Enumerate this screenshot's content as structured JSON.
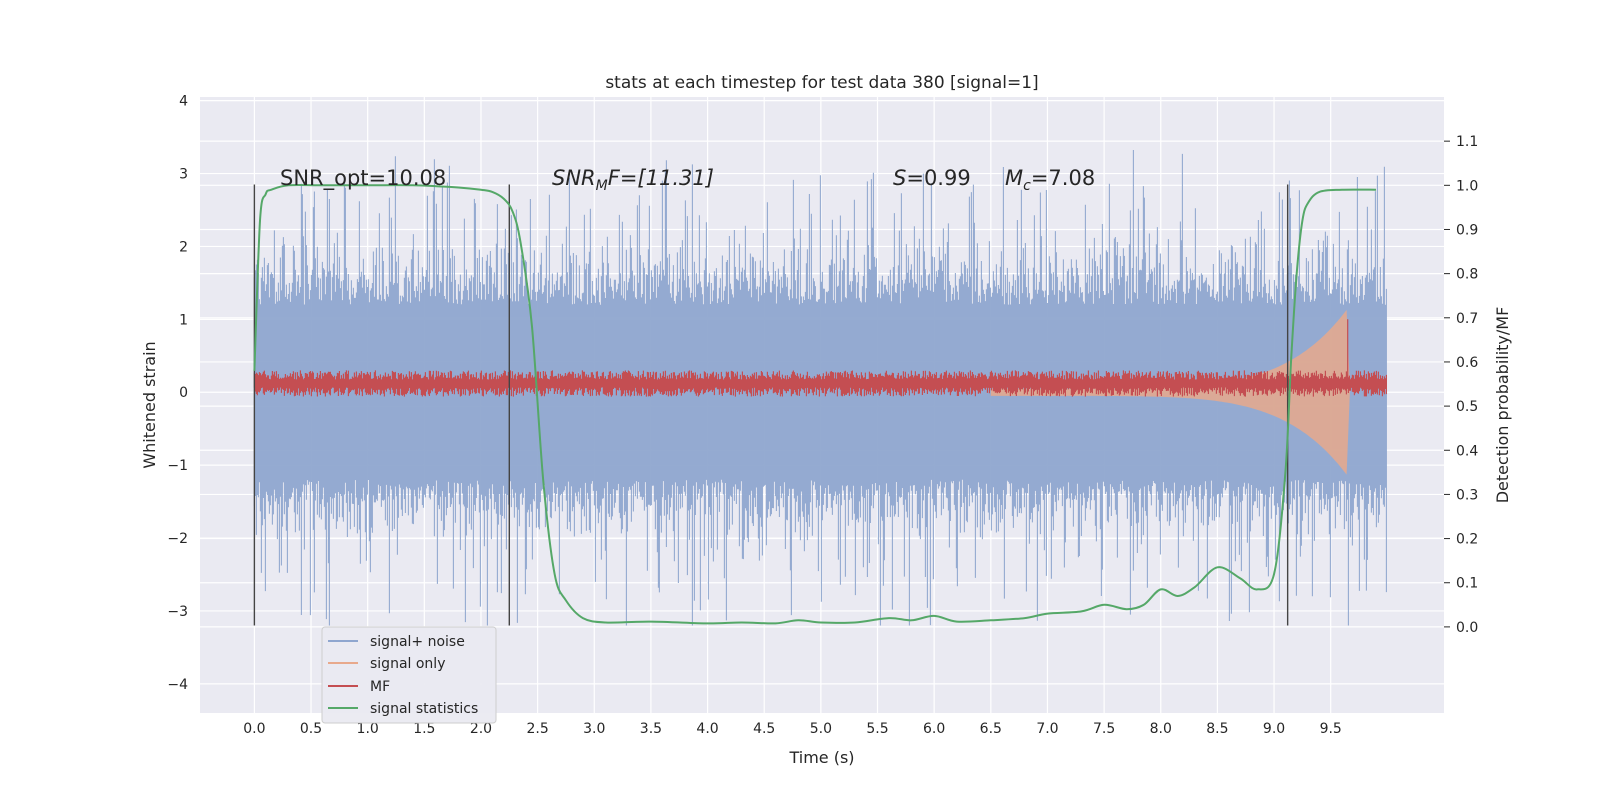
{
  "chart_data": {
    "type": "line",
    "title": "stats at each timestep for test data 380 [signal=1]",
    "xlabel": "Time (s)",
    "ylabel_left": "Whitened strain",
    "ylabel_right": "Detection probability/MF",
    "xlim": [
      -0.48,
      10.5
    ],
    "ylim_left": [
      -4.4,
      4.05
    ],
    "ylim_right": [
      -0.195,
      1.2
    ],
    "xticks": [
      "0.0",
      "0.5",
      "1.0",
      "1.5",
      "2.0",
      "2.5",
      "3.0",
      "3.5",
      "4.0",
      "4.5",
      "5.0",
      "5.5",
      "6.0",
      "6.5",
      "7.0",
      "7.5",
      "8.0",
      "8.5",
      "9.0",
      "9.5"
    ],
    "yticks_left": [
      "−4",
      "−3",
      "−2",
      "−1",
      "0",
      "1",
      "2",
      "3",
      "4"
    ],
    "yticks_right": [
      "0.0",
      "0.1",
      "0.2",
      "0.3",
      "0.4",
      "0.5",
      "0.6",
      "0.7",
      "0.8",
      "0.9",
      "1.0",
      "1.1"
    ],
    "grid": true,
    "legend_position": "lower-left",
    "annotations": {
      "snr_opt": "SNR_opt=10.08",
      "snr_mf_prefix": "SNR",
      "snr_mf_sub": "M",
      "snr_mf_suffix": "F=[11.31]",
      "s_var": "S",
      "s_val": "=0.99",
      "mc_var": "M",
      "mc_sub": "c",
      "mc_val": "=7.08"
    },
    "vlines": [
      0.0,
      2.25,
      9.12
    ],
    "series": [
      {
        "name": "signal+ noise",
        "color": "#8fa6cf",
        "axis": "left",
        "x_range": [
          0.0,
          10.0
        ],
        "envelope": [
          -3.2,
          3.6
        ]
      },
      {
        "name": "signal only",
        "color": "#e8a98c",
        "axis": "left",
        "chirp": {
          "start": 6.5,
          "merge": 9.65,
          "peak_amp": 1.1
        }
      },
      {
        "name": "MF",
        "color": "#c44e52",
        "axis": "left",
        "mean": 0.12,
        "spread": 0.18,
        "peak_x": 9.65,
        "peak_y": 1.0
      },
      {
        "name": "signal statistics",
        "color": "#55a868",
        "axis": "right",
        "x": [
          0.0,
          0.05,
          0.1,
          0.15,
          0.3,
          0.6,
          1.0,
          1.4,
          1.8,
          2.0,
          2.1,
          2.2,
          2.28,
          2.35,
          2.45,
          2.55,
          2.65,
          2.75,
          2.9,
          3.1,
          3.5,
          4.0,
          4.3,
          4.6,
          4.8,
          5.0,
          5.3,
          5.6,
          5.8,
          6.0,
          6.2,
          6.5,
          6.8,
          7.0,
          7.3,
          7.5,
          7.7,
          7.85,
          8.0,
          8.15,
          8.3,
          8.5,
          8.7,
          8.85,
          9.0,
          9.1,
          9.15,
          9.2,
          9.25,
          9.3,
          9.4,
          9.6,
          9.9
        ],
        "y": [
          0.58,
          0.92,
          0.98,
          0.99,
          1.0,
          1.0,
          1.0,
          1.0,
          0.995,
          0.99,
          0.985,
          0.97,
          0.94,
          0.87,
          0.68,
          0.33,
          0.12,
          0.06,
          0.02,
          0.01,
          0.012,
          0.008,
          0.01,
          0.008,
          0.015,
          0.01,
          0.01,
          0.02,
          0.015,
          0.025,
          0.012,
          0.015,
          0.02,
          0.03,
          0.035,
          0.05,
          0.04,
          0.05,
          0.085,
          0.07,
          0.09,
          0.135,
          0.11,
          0.085,
          0.12,
          0.35,
          0.6,
          0.8,
          0.92,
          0.96,
          0.985,
          0.99,
          0.99
        ]
      }
    ]
  }
}
